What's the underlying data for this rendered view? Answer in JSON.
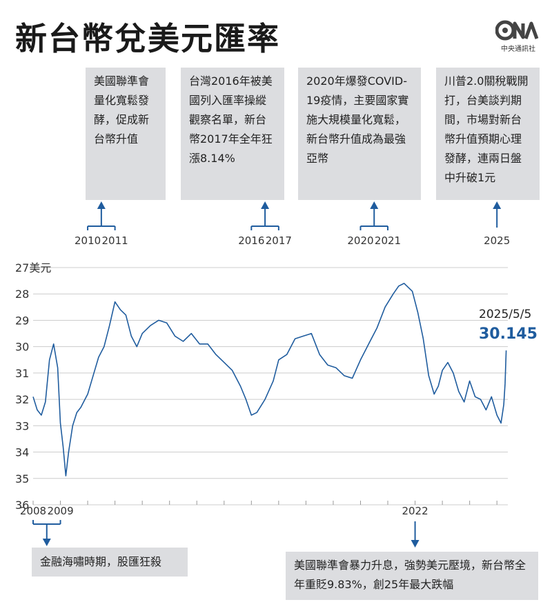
{
  "title": "新台幣兌美元匯率",
  "logo": {
    "text": "中央通訊社"
  },
  "annotations": [
    {
      "id": "qe2010",
      "text": "美國聯準會量化寬鬆發酵，促成新台幣升值",
      "years": [
        "2010",
        "2011"
      ]
    },
    {
      "id": "watch2016",
      "text": "台灣2016年被美國列入匯率操縱觀察名單，新台幣2017年全年狂漲8.14%",
      "years": [
        "2016",
        "2017"
      ]
    },
    {
      "id": "covid2020",
      "text": "2020年爆發COVID-19疫情，主要國家實施大規模量化寬鬆，新台幣升值成為最強亞幣",
      "years": [
        "2020",
        "2021"
      ]
    },
    {
      "id": "trump2025",
      "text": "川普2.0關稅戰開打，台美談判期間，市場對新台幣升值預期心理發酵，連兩日盤中升破1元",
      "years": [
        "2025"
      ]
    },
    {
      "id": "crisis2008",
      "text": "金融海嘯時期，股匯狂殺",
      "years": [
        "2008",
        "2009"
      ]
    },
    {
      "id": "fed2022",
      "text": "美國聯準會暴力升息，強勢美元壓境，新台幣全年重貶9.83%，創25年最大跌幅",
      "years": [
        "2022"
      ]
    }
  ],
  "end_label": {
    "date": "2025/5/5",
    "value": "30.145"
  },
  "colors": {
    "line": "#1f5c9e",
    "arrow": "#1f5c9e",
    "box": "#dcdde0",
    "grid": "#cccccc"
  },
  "chart_data": {
    "type": "line",
    "title": "新台幣兌美元匯率",
    "ylabel": "美元",
    "y_unit": "美元",
    "y_inverted": true,
    "ylim": [
      36,
      27
    ],
    "yticks": [
      "27",
      "28",
      "29",
      "30",
      "31",
      "32",
      "33",
      "34",
      "35",
      "36"
    ],
    "xlim": [
      2008.0,
      2025.4
    ],
    "grid": true,
    "series": [
      {
        "x": [
          2008.0,
          2008.15,
          2008.3,
          2008.45,
          2008.6,
          2008.75,
          2008.9,
          2009.0,
          2009.1,
          2009.2,
          2009.3,
          2009.45,
          2009.6,
          2009.75,
          2009.9,
          2010.0,
          2010.2,
          2010.4,
          2010.6,
          2010.8,
          2011.0,
          2011.2,
          2011.4,
          2011.6,
          2011.8,
          2012.0,
          2012.3,
          2012.6,
          2012.9,
          2013.2,
          2013.5,
          2013.8,
          2014.1,
          2014.4,
          2014.7,
          2015.0,
          2015.3,
          2015.6,
          2015.8,
          2016.0,
          2016.2,
          2016.5,
          2016.8,
          2017.0,
          2017.3,
          2017.6,
          2017.9,
          2018.2,
          2018.5,
          2018.8,
          2019.1,
          2019.4,
          2019.7,
          2020.0,
          2020.3,
          2020.6,
          2020.9,
          2021.2,
          2021.4,
          2021.6,
          2021.9,
          2022.1,
          2022.3,
          2022.5,
          2022.7,
          2022.85,
          2023.0,
          2023.2,
          2023.4,
          2023.6,
          2023.8,
          2024.0,
          2024.2,
          2024.4,
          2024.6,
          2024.8,
          2025.0,
          2025.15,
          2025.25,
          2025.3,
          2025.34
        ],
        "y": [
          31.9,
          32.4,
          32.6,
          32.1,
          30.5,
          29.9,
          30.8,
          32.9,
          33.8,
          34.9,
          34.0,
          33.0,
          32.5,
          32.3,
          32.0,
          31.8,
          31.1,
          30.4,
          30.0,
          29.2,
          28.3,
          28.6,
          28.8,
          29.6,
          30.0,
          29.5,
          29.2,
          29.0,
          29.1,
          29.6,
          29.8,
          29.5,
          29.9,
          29.9,
          30.3,
          30.6,
          30.9,
          31.5,
          32.0,
          32.6,
          32.5,
          32.0,
          31.3,
          30.5,
          30.3,
          29.7,
          29.6,
          29.5,
          30.3,
          30.7,
          30.8,
          31.1,
          31.2,
          30.5,
          29.9,
          29.3,
          28.5,
          28.0,
          27.7,
          27.6,
          27.9,
          28.7,
          29.7,
          31.1,
          31.8,
          31.5,
          30.9,
          30.6,
          31.0,
          31.7,
          32.1,
          31.3,
          31.9,
          32.0,
          32.4,
          31.9,
          32.6,
          32.9,
          32.2,
          31.4,
          30.145
        ]
      }
    ]
  }
}
